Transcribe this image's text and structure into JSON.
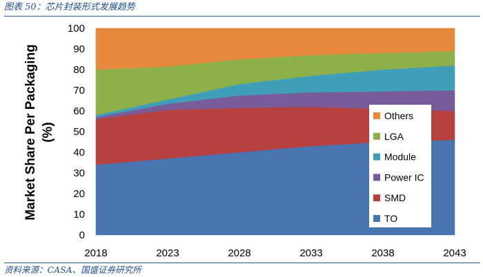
{
  "caption": "图表 50：芯片封装形式发展趋势",
  "source": "资料来源：CASA、国盛证券研究所",
  "chart_data": {
    "type": "area",
    "stacked": true,
    "x": [
      2018,
      2023,
      2028,
      2033,
      2038,
      2043
    ],
    "xticks": [
      "2018",
      "2023",
      "2028",
      "2033",
      "2038",
      "2043"
    ],
    "ylim": [
      0,
      100
    ],
    "yticks": [
      "0",
      "10",
      "20",
      "30",
      "40",
      "50",
      "60",
      "70",
      "80",
      "90",
      "100"
    ],
    "ylabel_line1": "Market Share Per Packaging",
    "ylabel_line2": "(%)",
    "xlabel": "",
    "legend_position": "right-inside",
    "series": [
      {
        "name": "TO",
        "color": "#4a74b0",
        "values": [
          34,
          37,
          40,
          43,
          45,
          46
        ]
      },
      {
        "name": "SMD",
        "color": "#b7413e",
        "values": [
          22,
          23.5,
          21.5,
          19,
          16,
          14
        ]
      },
      {
        "name": "Power IC",
        "color": "#7a5b9a",
        "values": [
          1,
          3,
          6,
          7,
          8.5,
          10
        ]
      },
      {
        "name": "Module",
        "color": "#3f9fb8",
        "values": [
          1,
          2,
          5.5,
          8,
          10.5,
          12
        ]
      },
      {
        "name": "LGA",
        "color": "#8db04b",
        "values": [
          22,
          16,
          12,
          10,
          8,
          7
        ]
      },
      {
        "name": "Others",
        "color": "#e6893c",
        "values": [
          20,
          18.5,
          15,
          13,
          12,
          11
        ]
      }
    ]
  }
}
